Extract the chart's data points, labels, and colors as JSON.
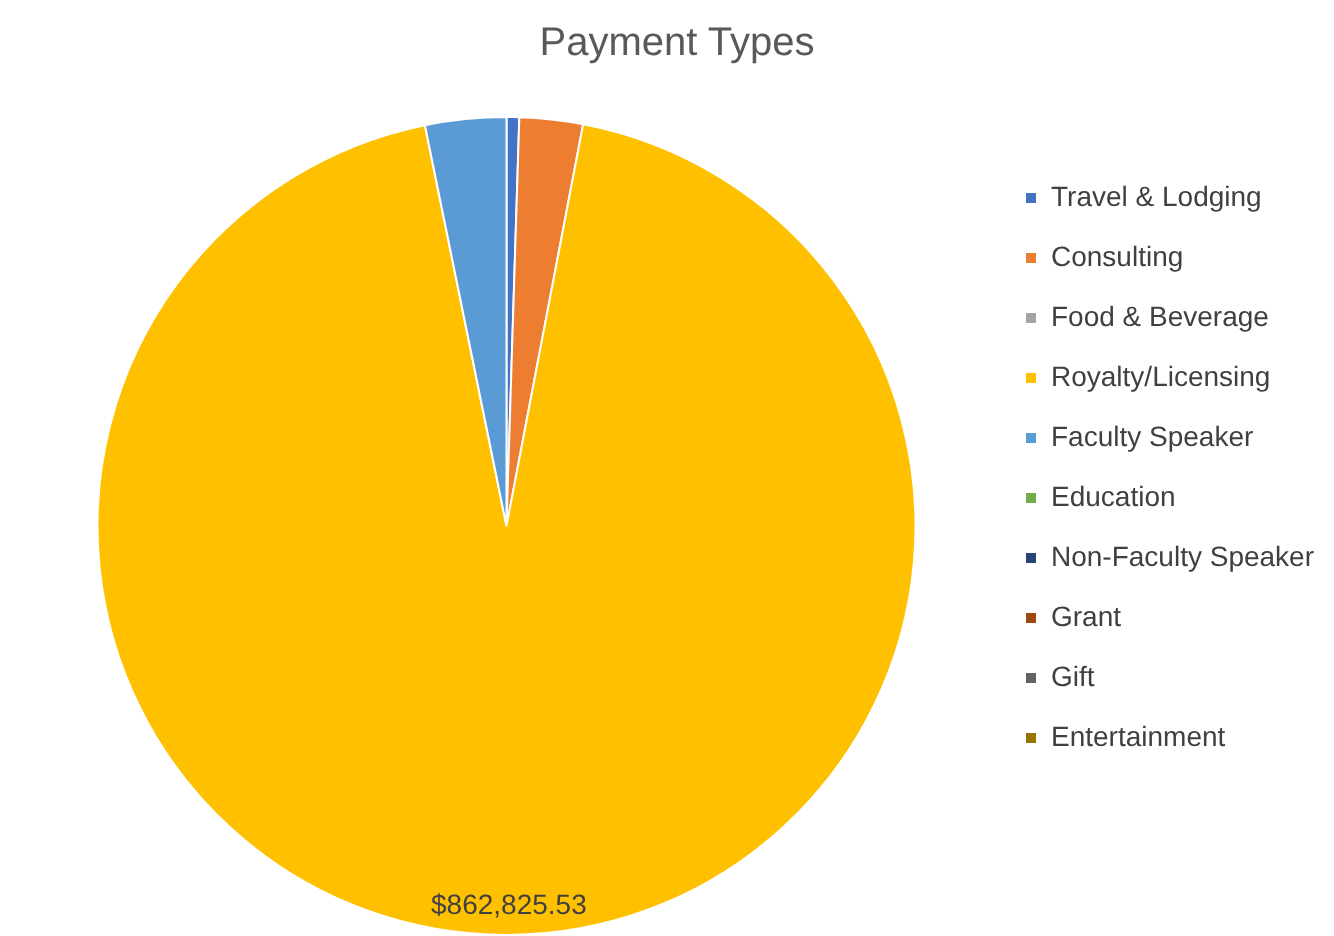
{
  "chart_data": {
    "type": "pie",
    "title": "Payment Types",
    "categories": [
      "Travel & Lodging",
      "Consulting",
      "Food & Beverage",
      "Royalty/Licensing",
      "Faculty Speaker",
      "Education",
      "Non-Faculty Speaker",
      "Grant",
      "Gift",
      "Entertainment"
    ],
    "values": [
      4600,
      23000,
      0,
      862825.53,
      29400,
      0,
      0,
      0,
      0,
      0
    ],
    "colors": [
      "#4472c4",
      "#ed7d31",
      "#a5a5a5",
      "#ffc000",
      "#5b9bd5",
      "#70ad47",
      "#264478",
      "#9e480e",
      "#636363",
      "#997300"
    ],
    "value_labels": [
      null,
      null,
      null,
      "$862,825.53",
      null,
      null,
      null,
      null,
      null,
      null
    ],
    "legend": "right"
  }
}
